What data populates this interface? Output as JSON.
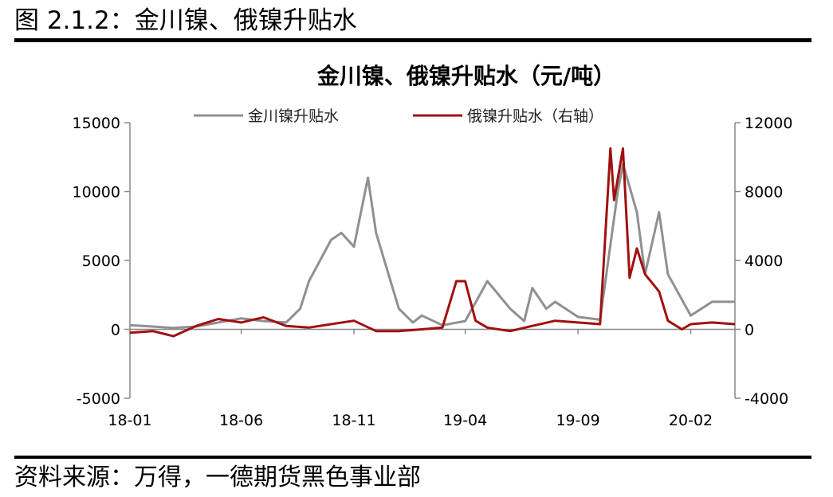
{
  "figure_caption": "图 2.1.2：金川镍、俄镍升贴水",
  "source_note": "资料来源：万得，一德期货黑色事业部",
  "colors": {
    "left_series": "#909090",
    "right_series": "#A01010",
    "axis": "#888888"
  },
  "chart_data": {
    "type": "line",
    "title": "金川镍、俄镍升贴水（元/吨）",
    "legend_position": "top-center",
    "grid": false,
    "x_ticks": [
      "18-01",
      "18-06",
      "18-11",
      "19-04",
      "19-09",
      "20-02"
    ],
    "x_range": [
      "2018-01",
      "2020-04"
    ],
    "y_left": {
      "min": -5000,
      "max": 15000,
      "ticks": [
        -5000,
        0,
        5000,
        10000,
        15000
      ]
    },
    "y_right": {
      "min": -4000,
      "max": 12000,
      "ticks": [
        -4000,
        0,
        4000,
        8000,
        12000
      ]
    },
    "series": [
      {
        "name": "金川镍升贴水",
        "axis": "left",
        "x": [
          "2018-01",
          "2018-02",
          "2018-03",
          "2018-04",
          "2018-05",
          "2018-06",
          "2018-07",
          "2018-08",
          "2018-08-20",
          "2018-09",
          "2018-10",
          "2018-10-15",
          "2018-11",
          "2018-11-20",
          "2018-12",
          "2019-01",
          "2019-01-20",
          "2019-02",
          "2019-03",
          "2019-04",
          "2019-05",
          "2019-06",
          "2019-06-20",
          "2019-07",
          "2019-07-20",
          "2019-08",
          "2019-09",
          "2019-10",
          "2019-10-25",
          "2019-11",
          "2019-11-20",
          "2019-12",
          "2019-12-20",
          "2020-01",
          "2020-02",
          "2020-03",
          "2020-04"
        ],
        "values": [
          300,
          200,
          100,
          200,
          500,
          800,
          600,
          500,
          1500,
          3500,
          6500,
          7000,
          6000,
          11000,
          7000,
          1500,
          500,
          1000,
          300,
          600,
          3500,
          1500,
          600,
          3000,
          1500,
          2000,
          900,
          700,
          10000,
          12000,
          8500,
          4000,
          8500,
          4000,
          1000,
          2000,
          2000
        ]
      },
      {
        "name": "俄镍升贴水（右轴）",
        "axis": "right",
        "x": [
          "2018-01",
          "2018-02",
          "2018-03",
          "2018-04",
          "2018-05",
          "2018-06",
          "2018-07",
          "2018-08",
          "2018-09",
          "2018-10",
          "2018-11",
          "2018-12",
          "2019-01",
          "2019-02",
          "2019-03",
          "2019-03-20",
          "2019-04",
          "2019-04-15",
          "2019-05",
          "2019-06",
          "2019-07",
          "2019-08",
          "2019-09",
          "2019-10",
          "2019-10-15",
          "2019-10-20",
          "2019-11",
          "2019-11-10",
          "2019-11-20",
          "2019-12",
          "2019-12-20",
          "2020-01",
          "2020-01-20",
          "2020-02",
          "2020-03",
          "2020-04"
        ],
        "values": [
          -200,
          -100,
          -400,
          200,
          600,
          400,
          700,
          200,
          100,
          300,
          500,
          -100,
          -100,
          0,
          100,
          2800,
          2800,
          500,
          100,
          -100,
          200,
          500,
          400,
          300,
          10500,
          7500,
          10500,
          3000,
          4700,
          3200,
          2200,
          500,
          0,
          300,
          400,
          300
        ]
      }
    ]
  }
}
